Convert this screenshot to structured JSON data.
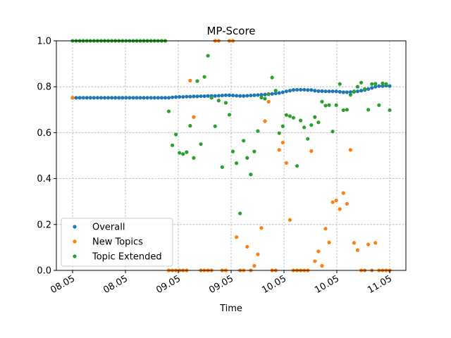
{
  "chart_data": {
    "type": "scatter",
    "title": "MP-Score",
    "xlabel": "Time",
    "ylabel": "",
    "ylim": [
      0,
      1.0
    ],
    "yticks": [
      "0.0",
      "0.2",
      "0.4",
      "0.6",
      "0.8",
      "1.0"
    ],
    "xticks": [
      "08.05",
      "08.05",
      "09.05",
      "09.05",
      "10.05",
      "10.05",
      "11.05"
    ],
    "x_index_range": [
      0,
      89
    ],
    "grid": true,
    "legend_position": "lower-left",
    "colors": {
      "Overall": "#1f77b4",
      "New Topics": "#ff7f0e",
      "Topic Extended": "#2ca02c"
    },
    "series": [
      {
        "name": "Overall",
        "x": [
          0,
          1,
          2,
          3,
          4,
          5,
          6,
          7,
          8,
          9,
          10,
          11,
          12,
          13,
          14,
          15,
          16,
          17,
          18,
          19,
          20,
          21,
          22,
          23,
          24,
          25,
          26,
          27,
          28,
          29,
          30,
          31,
          32,
          33,
          34,
          35,
          36,
          37,
          38,
          39,
          40,
          41,
          42,
          43,
          44,
          45,
          46,
          47,
          48,
          49,
          50,
          51,
          52,
          53,
          54,
          55,
          56,
          57,
          58,
          59,
          60,
          61,
          62,
          63,
          64,
          65,
          66,
          67,
          68,
          69,
          70,
          71,
          72,
          73,
          74,
          75,
          76,
          77,
          78,
          79,
          80,
          81,
          82,
          83,
          84,
          85,
          86,
          87,
          88,
          89
        ],
        "y": [
          0.752,
          0.752,
          0.752,
          0.752,
          0.752,
          0.752,
          0.752,
          0.752,
          0.752,
          0.752,
          0.752,
          0.752,
          0.752,
          0.752,
          0.752,
          0.752,
          0.752,
          0.752,
          0.752,
          0.752,
          0.752,
          0.752,
          0.752,
          0.752,
          0.752,
          0.752,
          0.752,
          0.752,
          0.754,
          0.755,
          0.756,
          0.756,
          0.757,
          0.757,
          0.758,
          0.758,
          0.759,
          0.759,
          0.76,
          0.76,
          0.76,
          0.761,
          0.762,
          0.763,
          0.763,
          0.762,
          0.761,
          0.76,
          0.76,
          0.761,
          0.762,
          0.763,
          0.764,
          0.765,
          0.766,
          0.768,
          0.769,
          0.771,
          0.773,
          0.776,
          0.78,
          0.783,
          0.786,
          0.787,
          0.787,
          0.787,
          0.786,
          0.786,
          0.783,
          0.781,
          0.781,
          0.78,
          0.78,
          0.78,
          0.78,
          0.778,
          0.776,
          0.776,
          0.777,
          0.778,
          0.78,
          0.783,
          0.786,
          0.79,
          0.795,
          0.8,
          0.803,
          0.803,
          0.805,
          0.803
        ]
      },
      {
        "name": "New Topics",
        "x": [
          0,
          27,
          28,
          29,
          30,
          31,
          32,
          33,
          34,
          36,
          37,
          38,
          39,
          40,
          41,
          42,
          43,
          44,
          45,
          46,
          47,
          48,
          49,
          50,
          51,
          52,
          53,
          54,
          55,
          56,
          57,
          58,
          59,
          60,
          61,
          62,
          63,
          64,
          65,
          66,
          67,
          68,
          69,
          70,
          71,
          72,
          73,
          74,
          75,
          76,
          77,
          78,
          79,
          80,
          81,
          82,
          83,
          84,
          85,
          86,
          87,
          88,
          89
        ],
        "y": [
          0.752,
          0.0,
          0.0,
          0.0,
          0.0,
          0.0,
          0.0,
          0.827,
          0.668,
          0.0,
          0.0,
          0.0,
          0.0,
          1.0,
          1.0,
          0.0,
          0.0,
          1.0,
          1.0,
          0.145,
          0.0,
          0.0,
          0.103,
          0.0,
          0.02,
          0.07,
          0.185,
          0.65,
          0.735,
          0.0,
          0.0,
          0.525,
          0.557,
          0.468,
          0.22,
          0.0,
          0.0,
          0.0,
          0.0,
          0.0,
          0.52,
          0.04,
          0.083,
          0.02,
          0.182,
          0.122,
          0.297,
          0.305,
          0.267,
          0.337,
          0.29,
          0.525,
          0.12,
          0.088,
          0.0,
          0.0,
          0.113,
          0.0,
          0.12,
          0.0,
          0.0,
          0.0,
          0.0
        ]
      },
      {
        "name": "Topic Extended",
        "x": [
          0,
          1,
          2,
          3,
          4,
          5,
          6,
          7,
          8,
          9,
          10,
          11,
          12,
          13,
          14,
          15,
          16,
          17,
          18,
          19,
          20,
          21,
          22,
          23,
          24,
          25,
          26,
          27,
          28,
          29,
          30,
          31,
          32,
          33,
          34,
          35,
          36,
          37,
          38,
          39,
          40,
          41,
          42,
          43,
          44,
          45,
          46,
          47,
          48,
          49,
          50,
          51,
          52,
          53,
          54,
          55,
          56,
          57,
          58,
          59,
          60,
          61,
          62,
          63,
          64,
          65,
          66,
          67,
          68,
          69,
          70,
          71,
          72,
          73,
          74,
          75,
          76,
          77,
          78,
          79,
          80,
          81,
          82,
          83,
          84,
          85,
          86,
          87,
          88,
          89
        ],
        "y": [
          1.0,
          1.0,
          1.0,
          1.0,
          1.0,
          1.0,
          1.0,
          1.0,
          1.0,
          1.0,
          1.0,
          1.0,
          1.0,
          1.0,
          1.0,
          1.0,
          1.0,
          1.0,
          1.0,
          1.0,
          1.0,
          1.0,
          1.0,
          1.0,
          1.0,
          1.0,
          1.0,
          0.693,
          0.545,
          0.592,
          0.512,
          0.507,
          0.515,
          0.63,
          0.49,
          0.825,
          0.55,
          0.843,
          0.935,
          0.752,
          0.628,
          0.74,
          0.45,
          0.73,
          0.678,
          0.518,
          0.467,
          0.248,
          0.565,
          0.49,
          0.418,
          0.518,
          0.607,
          0.753,
          0.748,
          0.767,
          0.84,
          0.783,
          0.598,
          0.628,
          0.677,
          0.672,
          0.665,
          0.455,
          0.653,
          0.623,
          0.573,
          0.633,
          0.668,
          0.645,
          0.735,
          0.718,
          0.72,
          0.605,
          0.72,
          0.812,
          0.698,
          0.7,
          0.765,
          0.78,
          0.8,
          0.818,
          0.79,
          0.7,
          0.812,
          0.813,
          0.72,
          0.815,
          0.812,
          0.698
        ]
      }
    ]
  }
}
